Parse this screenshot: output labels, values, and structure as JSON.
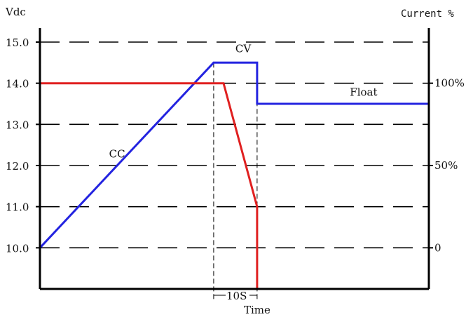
{
  "chart_data": {
    "type": "line",
    "title": "",
    "xlabel": "Time",
    "left_axis": {
      "label": "Vdc",
      "ticks": [
        "15.0",
        "14.0",
        "13.0",
        "12.0",
        "11.0",
        "10.0"
      ],
      "ylim": [
        9.0,
        15.0
      ]
    },
    "right_axis": {
      "label": "Current %",
      "ticks": [
        "100%",
        "50%",
        "0"
      ],
      "ylim": [
        -25,
        125
      ]
    },
    "grid": true,
    "interval_label": "10S",
    "series": [
      {
        "color": "#2323e0",
        "axis": "left",
        "points": [
          [
            0,
            10.0
          ],
          [
            8.8,
            14.5
          ],
          [
            11.0,
            14.5
          ],
          [
            11.0,
            13.5
          ],
          [
            19.7,
            13.5
          ]
        ]
      },
      {
        "color": "#e02020",
        "axis": "right",
        "points": [
          [
            0,
            100
          ],
          [
            9.3,
            100
          ],
          [
            11.0,
            25
          ],
          [
            11.0,
            -25
          ],
          [
            19.7,
            -25
          ]
        ]
      }
    ],
    "annotations": [
      {
        "text": "CC",
        "x": 3.5,
        "y": 12.2
      },
      {
        "text": "CV",
        "x": 9.9,
        "y": 14.75
      },
      {
        "text": "Float",
        "x": 15.7,
        "y": 13.7
      }
    ],
    "x_guides": [
      8.8,
      11.0
    ]
  }
}
